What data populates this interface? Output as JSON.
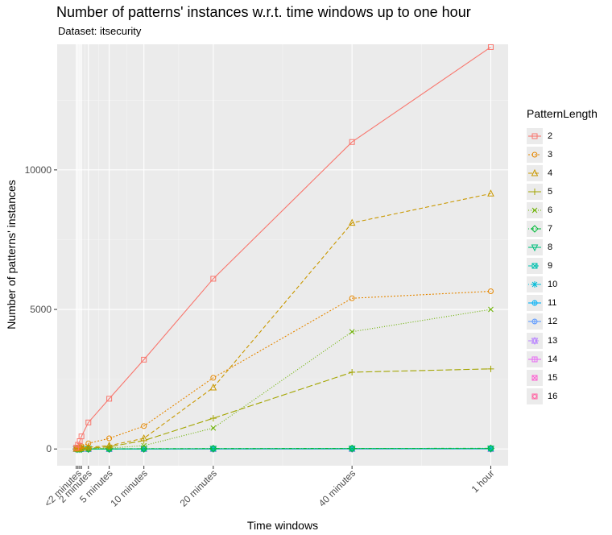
{
  "chart_data": {
    "type": "line",
    "title": "Number of patterns' instances w.r.t. time windows up to one hour",
    "subtitle": "Dataset: itsecurity",
    "xlabel": "Time windows",
    "ylabel": "Number of patterns' instances",
    "x_unit": "minutes",
    "x_ticks": [
      {
        "value": 0.5,
        "label": "<2 minutes"
      },
      {
        "value": 2,
        "label": "2 minutes"
      },
      {
        "value": 5,
        "label": "5 minutes"
      },
      {
        "value": 10,
        "label": "10 minutes"
      },
      {
        "value": 20,
        "label": "20 minutes"
      },
      {
        "value": 40,
        "label": "40 minutes"
      },
      {
        "value": 60,
        "label": "1 hour"
      }
    ],
    "x_minor_lines": [
      0.25,
      0.5,
      0.75,
      1,
      2,
      5,
      10,
      20,
      40,
      60
    ],
    "xlim": [
      -2.5,
      62.5
    ],
    "y_ticks": [
      0,
      5000,
      10000
    ],
    "ylim": [
      -600,
      14500
    ],
    "x": [
      0.25,
      0.5,
      0.75,
      1,
      2,
      5,
      10,
      20,
      40,
      60
    ],
    "legend_title": "PatternLength",
    "legend_position": "right",
    "series": [
      {
        "name": "2",
        "color": "#F8766D",
        "dash": "solid",
        "shape": "square",
        "values": [
          50,
          150,
          280,
          450,
          950,
          1800,
          3200,
          6100,
          11000,
          14400
        ]
      },
      {
        "name": "3",
        "color": "#E58700",
        "dash": "dotted",
        "shape": "circle",
        "values": [
          20,
          40,
          70,
          100,
          200,
          380,
          820,
          2550,
          5400,
          5650
        ]
      },
      {
        "name": "4",
        "color": "#C99800",
        "dash": "dashed",
        "shape": "triangle",
        "values": [
          5,
          10,
          20,
          30,
          60,
          120,
          380,
          2200,
          8100,
          9150
        ]
      },
      {
        "name": "5",
        "color": "#A3A500",
        "dash": "longdash",
        "shape": "plus",
        "values": [
          2,
          5,
          8,
          12,
          25,
          80,
          300,
          1100,
          2750,
          2870
        ]
      },
      {
        "name": "6",
        "color": "#6BB100",
        "dash": "dotted-fine",
        "shape": "cross",
        "values": [
          1,
          2,
          3,
          5,
          10,
          30,
          120,
          750,
          4200,
          5000
        ]
      },
      {
        "name": "7",
        "color": "#00BA38",
        "dash": "dotdash",
        "shape": "diamond",
        "values": [
          0,
          0,
          1,
          1,
          2,
          5,
          10,
          15,
          20,
          22
        ]
      },
      {
        "name": "8",
        "color": "#00BF7D",
        "dash": "solid",
        "shape": "triangle-down",
        "values": [
          0,
          0,
          0,
          1,
          1,
          3,
          6,
          10,
          14,
          16
        ]
      },
      {
        "name": "9",
        "color": "#00C0AF",
        "dash": "dashed",
        "shape": "square-cross",
        "values": [
          0,
          0,
          0,
          0,
          1,
          2,
          4,
          7,
          10,
          12
        ]
      },
      {
        "name": "10",
        "color": "#00BCD8",
        "dash": "dotdash",
        "shape": "asterisk",
        "values": [
          0,
          0,
          0,
          0,
          0,
          1,
          3,
          5,
          8,
          9
        ]
      },
      {
        "name": "11",
        "color": "#00B0F6",
        "dash": "solid",
        "shape": "circle-plus",
        "values": [
          0,
          0,
          0,
          0,
          0,
          1,
          2,
          4,
          6,
          7
        ]
      },
      {
        "name": "12",
        "color": "#619CFF",
        "dash": "solid",
        "shape": "circle-plus",
        "values": [
          0,
          0,
          0,
          0,
          0,
          1,
          1,
          3,
          4,
          5
        ]
      },
      {
        "name": "13",
        "color": "#B983FF",
        "dash": "dashed",
        "shape": "star",
        "values": [
          0,
          0,
          0,
          0,
          0,
          0,
          1,
          2,
          3,
          4
        ]
      },
      {
        "name": "14",
        "color": "#E76BF3",
        "dash": "solid",
        "shape": "square-plus",
        "values": [
          0,
          0,
          0,
          0,
          0,
          0,
          1,
          1,
          2,
          3
        ]
      },
      {
        "name": "15",
        "color": "#FD61D1",
        "dash": "none",
        "shape": "square-x",
        "values": [
          0,
          0,
          0,
          0,
          0,
          0,
          0,
          1,
          1,
          2
        ]
      },
      {
        "name": "16",
        "color": "#FF67A4",
        "dash": "none",
        "shape": "circle-square",
        "values": [
          0,
          0,
          0,
          0,
          0,
          0,
          0,
          0,
          1,
          1
        ]
      }
    ]
  }
}
